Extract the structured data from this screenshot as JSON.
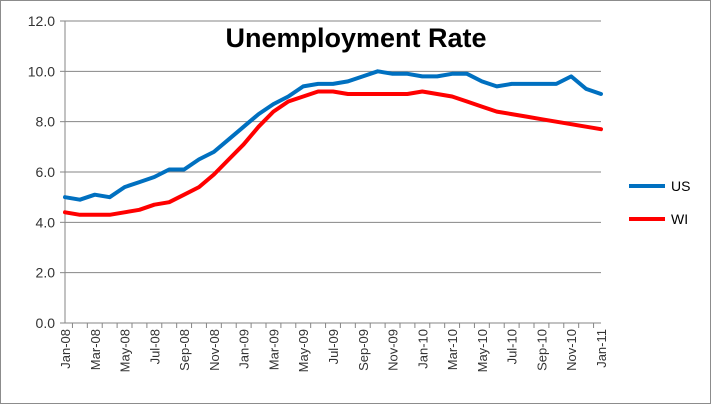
{
  "chart_data": {
    "type": "line",
    "title": "Unemployment Rate",
    "xlabel": "",
    "ylabel": "",
    "ylim": [
      0,
      12
    ],
    "yticks": [
      "0.0",
      "2.0",
      "4.0",
      "6.0",
      "8.0",
      "10.0",
      "12.0"
    ],
    "grid": true,
    "legend_position": "right",
    "x": [
      "Jan-08",
      "Feb-08",
      "Mar-08",
      "Apr-08",
      "May-08",
      "Jun-08",
      "Jul-08",
      "Aug-08",
      "Sep-08",
      "Oct-08",
      "Nov-08",
      "Dec-08",
      "Jan-09",
      "Feb-09",
      "Mar-09",
      "Apr-09",
      "May-09",
      "Jun-09",
      "Jul-09",
      "Aug-09",
      "Sep-09",
      "Oct-09",
      "Nov-09",
      "Dec-09",
      "Jan-10",
      "Feb-10",
      "Mar-10",
      "Apr-10",
      "May-10",
      "Jun-10",
      "Jul-10",
      "Aug-10",
      "Sep-10",
      "Oct-10",
      "Nov-10",
      "Dec-10",
      "Jan-11"
    ],
    "xtick_labels": [
      "Jan-08",
      "Mar-08",
      "May-08",
      "Jul-08",
      "Sep-08",
      "Nov-08",
      "Jan-09",
      "Mar-09",
      "May-09",
      "Jul-09",
      "Sep-09",
      "Nov-09",
      "Jan-10",
      "Mar-10",
      "May-10",
      "Jul-10",
      "Sep-10",
      "Nov-10",
      "Jan-11"
    ],
    "series": [
      {
        "name": "US",
        "color": "#0070C0",
        "values": [
          5.0,
          4.9,
          5.1,
          5.0,
          5.4,
          5.6,
          5.8,
          6.1,
          6.1,
          6.5,
          6.8,
          7.3,
          7.8,
          8.3,
          8.7,
          9.0,
          9.4,
          9.5,
          9.5,
          9.6,
          9.8,
          10.0,
          9.9,
          9.9,
          9.8,
          9.8,
          9.9,
          9.9,
          9.6,
          9.4,
          9.5,
          9.5,
          9.5,
          9.5,
          9.8,
          9.3,
          9.1
        ]
      },
      {
        "name": "WI",
        "color": "#FF0000",
        "values": [
          4.4,
          4.3,
          4.3,
          4.3,
          4.4,
          4.5,
          4.7,
          4.8,
          5.1,
          5.4,
          5.9,
          6.5,
          7.1,
          7.8,
          8.4,
          8.8,
          9.0,
          9.2,
          9.2,
          9.1,
          9.1,
          9.1,
          9.1,
          9.1,
          9.2,
          9.1,
          9.0,
          8.8,
          8.6,
          8.4,
          8.3,
          8.2,
          8.1,
          8.0,
          7.9,
          7.8,
          7.7
        ]
      }
    ]
  }
}
